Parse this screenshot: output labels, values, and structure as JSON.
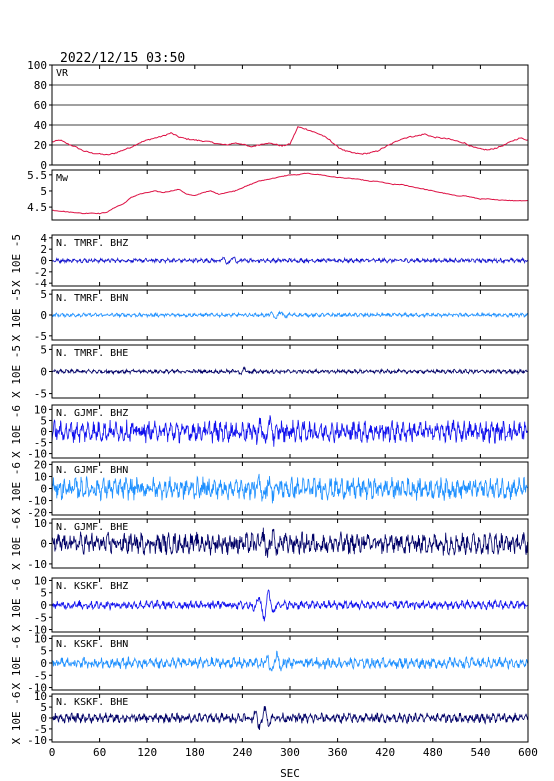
{
  "header": {
    "datetime": "2022/12/15  03:50"
  },
  "x_axis": {
    "label": "SEC",
    "ticks": [
      0,
      60,
      120,
      180,
      240,
      300,
      360,
      420,
      480,
      540,
      600
    ],
    "range": [
      0,
      600
    ]
  },
  "chart_data": [
    {
      "type": "line",
      "panel_label": "VR",
      "ylim": [
        0,
        100
      ],
      "yticks": [
        0,
        20,
        40,
        60,
        80,
        100
      ],
      "grid": true,
      "color": "#dd1144",
      "x": [
        0,
        10,
        20,
        30,
        40,
        50,
        60,
        70,
        80,
        90,
        100,
        110,
        120,
        130,
        140,
        150,
        160,
        170,
        180,
        190,
        200,
        210,
        220,
        230,
        240,
        250,
        260,
        270,
        280,
        290,
        300,
        310,
        320,
        330,
        340,
        350,
        360,
        370,
        380,
        390,
        400,
        410,
        420,
        430,
        440,
        450,
        460,
        470,
        480,
        490,
        500,
        510,
        520,
        530,
        540,
        550,
        560,
        570,
        580,
        590,
        600
      ],
      "values": [
        23,
        25,
        21,
        18,
        14,
        12,
        11,
        10,
        12,
        15,
        18,
        22,
        25,
        27,
        29,
        32,
        28,
        26,
        25,
        24,
        23,
        21,
        20,
        22,
        21,
        18,
        20,
        22,
        21,
        19,
        21,
        38,
        36,
        33,
        30,
        25,
        18,
        14,
        12,
        11,
        12,
        14,
        18,
        22,
        26,
        28,
        29,
        31,
        28,
        27,
        26,
        24,
        22,
        18,
        16,
        15,
        17,
        20,
        24,
        27,
        25
      ]
    },
    {
      "type": "line",
      "panel_label": "Mw",
      "ylim": [
        4.1,
        5.65
      ],
      "yticks": [
        4.5,
        5.0,
        5.5
      ],
      "color": "#dd1144",
      "x": [
        0,
        10,
        20,
        30,
        40,
        50,
        60,
        70,
        80,
        90,
        100,
        110,
        120,
        130,
        140,
        150,
        160,
        170,
        180,
        190,
        200,
        210,
        220,
        230,
        240,
        250,
        260,
        270,
        280,
        290,
        300,
        310,
        320,
        330,
        340,
        350,
        360,
        370,
        380,
        390,
        400,
        410,
        420,
        430,
        440,
        450,
        460,
        470,
        480,
        490,
        500,
        510,
        520,
        530,
        540,
        550,
        560,
        570,
        580,
        590,
        600
      ],
      "values": [
        4.4,
        4.38,
        4.35,
        4.33,
        4.3,
        4.32,
        4.3,
        4.35,
        4.5,
        4.6,
        4.8,
        4.9,
        4.95,
        5.0,
        4.95,
        5.0,
        5.05,
        4.9,
        4.85,
        4.95,
        5.0,
        4.9,
        4.95,
        5.0,
        5.1,
        5.2,
        5.3,
        5.35,
        5.4,
        5.45,
        5.5,
        5.5,
        5.55,
        5.52,
        5.5,
        5.45,
        5.42,
        5.4,
        5.38,
        5.35,
        5.3,
        5.3,
        5.25,
        5.2,
        5.2,
        5.15,
        5.1,
        5.05,
        5.0,
        4.95,
        4.9,
        4.85,
        4.85,
        4.8,
        4.75,
        4.75,
        4.72,
        4.72,
        4.7,
        4.7,
        4.7
      ]
    },
    {
      "type": "line",
      "panel_label": "N. TMRF. BHZ",
      "ylabel": "X 10E -5",
      "ylim": [
        -4.5,
        4.5
      ],
      "yticks": [
        -4,
        -2,
        0,
        2,
        4
      ],
      "color": "#1010cc",
      "amplitude": 0.25,
      "events": [
        {
          "t": 225,
          "a": 0.6
        }
      ]
    },
    {
      "type": "line",
      "panel_label": "N. TMRF. BHN",
      "ylabel": "X 10E -5",
      "ylim": [
        -6,
        6
      ],
      "yticks": [
        -5,
        0,
        5
      ],
      "color": "#1e90ff",
      "amplitude": 0.3,
      "events": [
        {
          "t": 285,
          "a": 0.8
        }
      ]
    },
    {
      "type": "line",
      "panel_label": "N. TMRF. BHE",
      "ylabel": "X 10E -5",
      "ylim": [
        -6,
        6
      ],
      "yticks": [
        -5,
        0,
        5
      ],
      "color": "#000066",
      "amplitude": 0.3,
      "events": [
        {
          "t": 240,
          "a": 0.6
        }
      ]
    },
    {
      "type": "line",
      "panel_label": "N. GJMF. BHZ",
      "ylabel": "X 10E -6",
      "ylim": [
        -12,
        12
      ],
      "yticks": [
        -10,
        -5,
        0,
        5,
        10
      ],
      "color": "#1010ee",
      "amplitude": 3.2,
      "events": [
        {
          "t": 272,
          "a": 5
        }
      ]
    },
    {
      "type": "line",
      "panel_label": "N. GJMF. BHN",
      "ylabel": "X 10E -6",
      "ylim": [
        -22,
        22
      ],
      "yticks": [
        -20,
        -10,
        0,
        10,
        20
      ],
      "color": "#1e90ff",
      "amplitude": 6,
      "events": [
        {
          "t": 270,
          "a": 6
        }
      ]
    },
    {
      "type": "line",
      "panel_label": "N. GJMF. BHE",
      "ylabel": "X 10E -6",
      "ylim": [
        -12,
        12
      ],
      "yticks": [
        -10,
        0,
        10
      ],
      "color": "#000066",
      "amplitude": 3.5,
      "events": [
        {
          "t": 275,
          "a": 5
        }
      ]
    },
    {
      "type": "line",
      "panel_label": "N. KSKF. BHZ",
      "ylabel": "X 10E -6",
      "ylim": [
        -11,
        11
      ],
      "yticks": [
        -10,
        -5,
        0,
        5,
        10
      ],
      "color": "#1010ee",
      "amplitude": 1.2,
      "events": [
        {
          "t": 270,
          "a": 6
        }
      ]
    },
    {
      "type": "line",
      "panel_label": "N. KSKF. BHN",
      "ylabel": "X 10E -6",
      "ylim": [
        -11,
        11
      ],
      "yticks": [
        -10,
        -5,
        0,
        5,
        10
      ],
      "color": "#1e90ff",
      "amplitude": 1.5,
      "events": [
        {
          "t": 280,
          "a": 4
        }
      ]
    },
    {
      "type": "line",
      "panel_label": "N. KSKF. BHE",
      "ylabel": "X 10E -6",
      "ylim": [
        -11,
        11
      ],
      "yticks": [
        -10,
        -5,
        0,
        5,
        10
      ],
      "color": "#000066",
      "amplitude": 1.5,
      "events": [
        {
          "t": 265,
          "a": 5
        }
      ]
    }
  ]
}
